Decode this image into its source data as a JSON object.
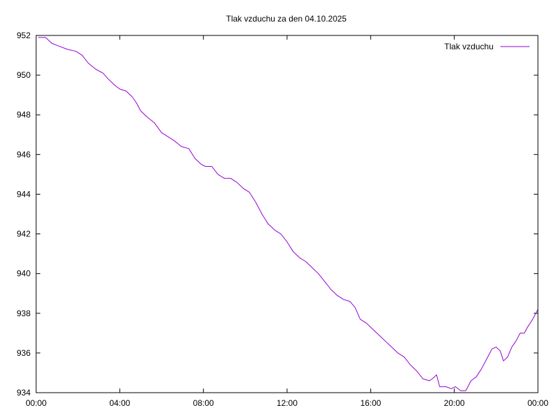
{
  "chart_data": {
    "type": "line",
    "title": "Tlak vzduchu za den 04.10.2025",
    "xlabel": "",
    "ylabel": "",
    "x_unit": "time of day (hours)",
    "xlim": [
      0,
      24
    ],
    "ylim": [
      934,
      952
    ],
    "x_ticks": [
      {
        "value": 0,
        "label": "00:00"
      },
      {
        "value": 4,
        "label": "04:00"
      },
      {
        "value": 8,
        "label": "08:00"
      },
      {
        "value": 12,
        "label": "12:00"
      },
      {
        "value": 16,
        "label": "16:00"
      },
      {
        "value": 20,
        "label": "20:00"
      },
      {
        "value": 24,
        "label": "00:00"
      }
    ],
    "y_ticks": [
      934,
      936,
      938,
      940,
      942,
      944,
      946,
      948,
      950,
      952
    ],
    "grid": false,
    "legend_position": "top-right",
    "series": [
      {
        "name": "Tlak vzduchu",
        "color": "#9400d3",
        "points": [
          [
            0.1,
            951.9
          ],
          [
            0.45,
            951.9
          ],
          [
            0.75,
            951.6
          ],
          [
            1.0,
            951.5
          ],
          [
            1.5,
            951.3
          ],
          [
            1.9,
            951.2
          ],
          [
            2.2,
            951.0
          ],
          [
            2.5,
            950.6
          ],
          [
            2.85,
            950.3
          ],
          [
            3.2,
            950.1
          ],
          [
            3.45,
            949.8
          ],
          [
            3.75,
            949.5
          ],
          [
            4.0,
            949.3
          ],
          [
            4.3,
            949.2
          ],
          [
            4.6,
            948.9
          ],
          [
            4.8,
            948.6
          ],
          [
            5.0,
            948.2
          ],
          [
            5.3,
            947.9
          ],
          [
            5.65,
            947.6
          ],
          [
            6.0,
            947.1
          ],
          [
            6.3,
            946.9
          ],
          [
            6.6,
            946.7
          ],
          [
            6.95,
            946.4
          ],
          [
            7.3,
            946.3
          ],
          [
            7.6,
            945.8
          ],
          [
            7.9,
            945.5
          ],
          [
            8.1,
            945.4
          ],
          [
            8.4,
            945.4
          ],
          [
            8.7,
            945.0
          ],
          [
            9.0,
            944.8
          ],
          [
            9.3,
            944.8
          ],
          [
            9.6,
            944.6
          ],
          [
            9.9,
            944.3
          ],
          [
            10.2,
            944.1
          ],
          [
            10.5,
            943.6
          ],
          [
            10.8,
            943.0
          ],
          [
            11.1,
            942.5
          ],
          [
            11.4,
            942.2
          ],
          [
            11.7,
            942.0
          ],
          [
            12.0,
            941.6
          ],
          [
            12.3,
            941.1
          ],
          [
            12.6,
            940.8
          ],
          [
            12.9,
            940.6
          ],
          [
            13.2,
            940.3
          ],
          [
            13.5,
            940.0
          ],
          [
            13.8,
            939.6
          ],
          [
            14.1,
            939.2
          ],
          [
            14.4,
            938.9
          ],
          [
            14.7,
            938.7
          ],
          [
            15.0,
            938.6
          ],
          [
            15.25,
            938.3
          ],
          [
            15.5,
            937.7
          ],
          [
            15.8,
            937.5
          ],
          [
            16.1,
            937.2
          ],
          [
            16.4,
            936.9
          ],
          [
            16.7,
            936.6
          ],
          [
            17.0,
            936.3
          ],
          [
            17.3,
            936.0
          ],
          [
            17.6,
            935.8
          ],
          [
            17.9,
            935.4
          ],
          [
            18.2,
            935.1
          ],
          [
            18.5,
            934.7
          ],
          [
            18.8,
            934.6
          ],
          [
            18.95,
            934.7
          ],
          [
            19.15,
            934.9
          ],
          [
            19.3,
            934.3
          ],
          [
            19.6,
            934.3
          ],
          [
            19.85,
            934.2
          ],
          [
            20.05,
            934.3
          ],
          [
            20.3,
            934.1
          ],
          [
            20.55,
            934.1
          ],
          [
            20.8,
            934.6
          ],
          [
            21.05,
            934.8
          ],
          [
            21.3,
            935.2
          ],
          [
            21.55,
            935.7
          ],
          [
            21.8,
            936.2
          ],
          [
            22.0,
            936.3
          ],
          [
            22.2,
            936.1
          ],
          [
            22.35,
            935.6
          ],
          [
            22.55,
            935.8
          ],
          [
            22.75,
            936.3
          ],
          [
            22.95,
            936.6
          ],
          [
            23.15,
            937.0
          ],
          [
            23.35,
            937.0
          ],
          [
            23.5,
            937.3
          ],
          [
            23.75,
            937.7
          ],
          [
            23.9,
            938.0
          ],
          [
            24.0,
            938.2
          ]
        ]
      }
    ]
  }
}
